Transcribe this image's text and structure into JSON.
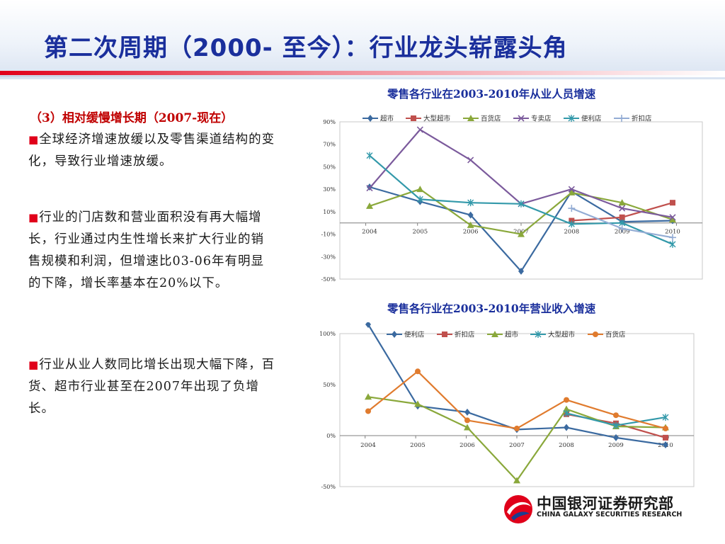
{
  "slide": {
    "title": "第二次周期（2000- 至今）：行业龙头崭露头角",
    "subtitle": "（3）相对缓慢增长期（2007-现在）",
    "bullets": [
      "全球经济增速放缓以及零售渠道结构的变化，导致行业增速放缓。",
      "行业的门店数和营业面积没有再大幅增长，行业通过内生性增长来扩大行业的销售规模和利润，但增速比03-06年有明显的下降，增长率基本在20%以下。",
      "行业从业人数同比增长出现大幅下降，百货、超市行业甚至在2007年出现了负增长。"
    ],
    "bullet_marker": "■"
  },
  "logo": {
    "name_cn": "中国银河证券研究部",
    "name_en": "CHINA GALAXY SECURITIES RESEARCH"
  },
  "colors": {
    "title": "#1a2f9c",
    "subtitle": "#c00000",
    "accent_red": "#e0001a"
  },
  "chart_data": [
    {
      "type": "line",
      "title": "零售各行业在2003-2010年从业人员增速",
      "x": [
        "2004",
        "2005",
        "2006",
        "2007",
        "2008",
        "2009",
        "2010"
      ],
      "ylim": [
        -0.5,
        0.9
      ],
      "yticks": [
        "90%",
        "70%",
        "50%",
        "30%",
        "10%",
        "-10%",
        "-30%",
        "-50%"
      ],
      "legend": "top",
      "series": [
        {
          "name": "超市",
          "color": "#3b6aa0",
          "marker": "diamond",
          "values": [
            0.32,
            0.19,
            0.07,
            -0.43,
            0.28,
            0.01,
            0.02
          ]
        },
        {
          "name": "大型超市",
          "color": "#c0504d",
          "marker": "square",
          "values": [
            null,
            null,
            null,
            null,
            0.02,
            0.05,
            0.18
          ]
        },
        {
          "name": "百货店",
          "color": "#8aa83b",
          "marker": "triangle",
          "values": [
            0.15,
            0.3,
            -0.02,
            -0.1,
            0.27,
            0.18,
            0.03
          ]
        },
        {
          "name": "专卖店",
          "color": "#7b5a9c",
          "marker": "x",
          "values": [
            0.31,
            0.83,
            0.56,
            0.17,
            0.3,
            0.13,
            0.05
          ]
        },
        {
          "name": "便利店",
          "color": "#3399aa",
          "marker": "star",
          "values": [
            0.6,
            0.21,
            0.18,
            0.17,
            -0.01,
            0.0,
            -0.19
          ]
        },
        {
          "name": "折扣店",
          "color": "#93acd4",
          "marker": "plus",
          "values": [
            null,
            null,
            null,
            null,
            0.13,
            -0.05,
            -0.13
          ]
        }
      ]
    },
    {
      "type": "line",
      "title": "零售各行业在2003-2010年营业收入增速",
      "x": [
        "2004",
        "2005",
        "2006",
        "2007",
        "2008",
        "2009",
        "2010"
      ],
      "ylim": [
        -0.5,
        1.0
      ],
      "yticks": [
        "100%",
        "50%",
        "0%",
        "-50%"
      ],
      "legend": "top",
      "series": [
        {
          "name": "便利店",
          "color": "#3b6aa0",
          "marker": "diamond",
          "values": [
            1.09,
            0.29,
            0.23,
            0.06,
            0.08,
            -0.02,
            -0.09
          ]
        },
        {
          "name": "折扣店",
          "color": "#c0504d",
          "marker": "square",
          "values": [
            null,
            null,
            null,
            null,
            0.21,
            0.12,
            -0.02
          ]
        },
        {
          "name": "超市",
          "color": "#8aa83b",
          "marker": "triangle",
          "values": [
            0.38,
            0.31,
            0.08,
            -0.44,
            0.26,
            0.09,
            0.08
          ]
        },
        {
          "name": "大型超市",
          "color": "#3399aa",
          "marker": "star",
          "values": [
            null,
            null,
            null,
            null,
            0.22,
            0.1,
            0.18
          ]
        },
        {
          "name": "百货店",
          "color": "#e07b2e",
          "marker": "circle",
          "values": [
            0.24,
            0.63,
            0.15,
            0.07,
            0.35,
            0.2,
            0.07
          ]
        }
      ]
    }
  ]
}
